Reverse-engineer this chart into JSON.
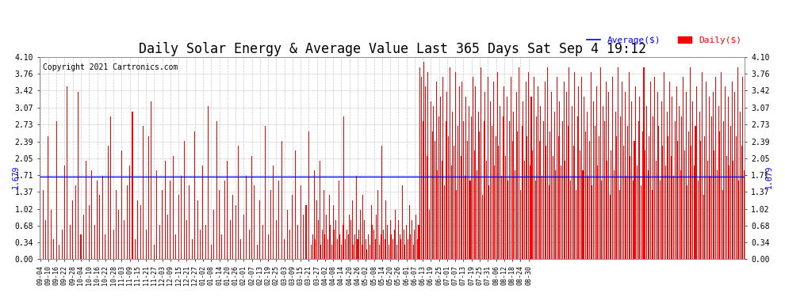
{
  "title": "Daily Solar Energy & Average Value Last 365 Days Sat Sep 4 19:12",
  "copyright": "Copyright 2021 Cartronics.com",
  "legend_average": "Average($)",
  "legend_daily": "Daily($)",
  "average_value": 1.679,
  "bar_color": "#FF0000",
  "average_line_color": "#0000FF",
  "background_color": "#FFFFFF",
  "grid_color": "#BBBBBB",
  "ylim": [
    0.0,
    4.1
  ],
  "yticks": [
    0.0,
    0.34,
    0.68,
    1.02,
    1.37,
    1.71,
    2.05,
    2.39,
    2.73,
    3.07,
    3.42,
    3.76,
    4.1
  ],
  "title_fontsize": 12,
  "copyright_fontsize": 7,
  "x_labels": [
    "09-04",
    "09-10",
    "09-16",
    "09-22",
    "09-28",
    "10-04",
    "10-10",
    "10-16",
    "10-22",
    "10-28",
    "11-03",
    "11-09",
    "11-15",
    "11-21",
    "11-27",
    "12-03",
    "12-09",
    "12-15",
    "12-21",
    "12-27",
    "01-02",
    "01-08",
    "01-14",
    "01-20",
    "01-26",
    "02-01",
    "02-07",
    "02-13",
    "02-19",
    "02-25",
    "03-03",
    "03-09",
    "03-15",
    "03-21",
    "03-27",
    "04-02",
    "04-08",
    "04-14",
    "04-20",
    "04-26",
    "05-02",
    "05-08",
    "05-14",
    "05-20",
    "05-26",
    "06-01",
    "06-07",
    "06-13",
    "06-19",
    "06-25",
    "07-01",
    "07-07",
    "07-13",
    "07-19",
    "07-25",
    "07-31",
    "08-06",
    "08-12",
    "08-18",
    "08-24",
    "08-30"
  ],
  "x_label_indices": [
    0,
    6,
    12,
    18,
    24,
    30,
    36,
    42,
    48,
    54,
    60,
    66,
    72,
    78,
    84,
    90,
    96,
    102,
    108,
    114,
    120,
    126,
    132,
    138,
    144,
    150,
    156,
    162,
    168,
    174,
    180,
    186,
    192,
    198,
    204,
    210,
    216,
    222,
    228,
    234,
    240,
    246,
    252,
    258,
    264,
    270,
    276,
    282,
    288,
    294,
    300,
    306,
    312,
    318,
    324,
    330,
    336,
    342,
    348,
    354,
    360
  ],
  "values": [
    2.1,
    0.0,
    1.4,
    0.0,
    0.8,
    0.0,
    2.5,
    0.0,
    1.0,
    0.0,
    0.4,
    0.0,
    2.8,
    0.0,
    0.3,
    0.0,
    0.6,
    0.0,
    1.9,
    0.0,
    3.5,
    0.0,
    0.7,
    0.0,
    1.2,
    0.0,
    1.5,
    0.0,
    3.4,
    0.0,
    0.5,
    0.0,
    0.9,
    0.0,
    2.0,
    0.0,
    1.1,
    0.0,
    1.8,
    0.0,
    0.7,
    0.0,
    1.6,
    0.0,
    1.3,
    0.0,
    1.7,
    0.0,
    0.5,
    0.0,
    2.3,
    0.0,
    2.9,
    0.0,
    0.6,
    0.0,
    1.4,
    0.0,
    1.0,
    0.0,
    2.2,
    0.0,
    0.8,
    0.0,
    1.5,
    0.0,
    1.9,
    0.0,
    3.0,
    0.0,
    0.4,
    0.0,
    1.2,
    0.0,
    1.1,
    0.0,
    2.7,
    0.0,
    0.6,
    0.0,
    2.5,
    0.0,
    3.2,
    0.0,
    0.3,
    0.0,
    1.8,
    0.0,
    0.7,
    0.0,
    1.4,
    0.0,
    2.0,
    0.0,
    0.9,
    0.0,
    1.6,
    0.0,
    2.1,
    0.0,
    0.5,
    0.0,
    1.3,
    0.0,
    1.7,
    0.0,
    2.4,
    0.0,
    0.8,
    0.0,
    1.5,
    0.0,
    0.4,
    0.0,
    2.6,
    0.0,
    1.2,
    0.0,
    0.6,
    0.0,
    1.9,
    0.0,
    0.7,
    0.0,
    3.1,
    0.0,
    0.3,
    0.0,
    1.0,
    0.0,
    2.8,
    0.0,
    1.4,
    0.0,
    0.5,
    0.0,
    1.6,
    0.0,
    2.0,
    0.0,
    0.8,
    0.0,
    1.3,
    0.0,
    1.1,
    0.0,
    2.3,
    0.0,
    0.4,
    0.0,
    0.9,
    0.0,
    1.7,
    0.0,
    0.6,
    0.0,
    2.1,
    0.0,
    1.5,
    0.0,
    0.3,
    0.0,
    1.2,
    0.0,
    0.7,
    0.0,
    2.7,
    0.0,
    0.5,
    0.0,
    1.4,
    0.0,
    1.9,
    0.0,
    0.8,
    0.0,
    1.6,
    0.0,
    2.4,
    0.0,
    0.4,
    0.0,
    1.0,
    0.0,
    0.6,
    0.0,
    1.3,
    0.0,
    2.2,
    0.0,
    0.7,
    0.0,
    1.5,
    0.0,
    0.9,
    0.0,
    1.1,
    0.0,
    2.6,
    0.0,
    0.3,
    0.5,
    1.8,
    0.4,
    1.2,
    0.8,
    2.0,
    0.3,
    0.6,
    1.4,
    0.5,
    0.9,
    0.4,
    1.3,
    0.7,
    0.3,
    1.1,
    0.6,
    0.8,
    0.4,
    1.6,
    0.5,
    0.3,
    0.7,
    2.9,
    0.4,
    0.6,
    0.5,
    0.9,
    0.8,
    1.2,
    0.3,
    0.5,
    1.7,
    0.4,
    0.6,
    1.0,
    0.3,
    1.3,
    0.8,
    0.4,
    0.2,
    0.5,
    0.3,
    1.1,
    0.7,
    0.6,
    0.4,
    0.9,
    1.4,
    0.3,
    0.5,
    2.3,
    0.6,
    0.4,
    1.2,
    0.7,
    0.3,
    0.8,
    0.5,
    0.4,
    0.6,
    1.0,
    0.3,
    0.8,
    0.5,
    0.4,
    1.5,
    0.6,
    0.3,
    0.7,
    0.4,
    1.1,
    0.5,
    0.8,
    0.3,
    0.6,
    0.9,
    0.4,
    0.7,
    3.9,
    3.7,
    2.8,
    4.0,
    3.5,
    2.1,
    3.8,
    1.0,
    3.2,
    2.6,
    3.1,
    2.4,
    3.6,
    1.8,
    2.9,
    3.3,
    2.0,
    3.7,
    1.5,
    2.8,
    3.4,
    2.5,
    3.9,
    1.9,
    3.0,
    2.3,
    3.8,
    1.4,
    2.7,
    3.5,
    2.1,
    3.6,
    2.8,
    1.7,
    3.3,
    2.4,
    3.1,
    1.6,
    2.9,
    3.7,
    2.2,
    3.5,
    1.8,
    3.0,
    2.6,
    3.9,
    1.3,
    2.8,
    3.4,
    2.0,
    3.7,
    1.5,
    3.2,
    2.7,
    3.6,
    1.9,
    2.5,
    3.8,
    2.3,
    3.1,
    1.7,
    2.9,
    3.5,
    2.1,
    3.3,
    1.6,
    2.8,
    3.7,
    2.4,
    3.0,
    1.8,
    3.4,
    2.6,
    3.9,
    1.4,
    2.7,
    3.2,
    2.0,
    3.6,
    2.5,
    3.8,
    1.9,
    3.3,
    2.2,
    3.7,
    1.6,
    2.9,
    3.5,
    2.4,
    3.1,
    1.7,
    2.8,
    3.6,
    2.3,
    3.9,
    1.5,
    2.6,
    3.4,
    2.1,
    3.0,
    1.8,
    3.7,
    2.5,
    3.2,
    1.9,
    2.8,
    3.6,
    2.0,
    3.4,
    2.7,
    3.9,
    1.6,
    3.1,
    2.3,
    3.8,
    1.4,
    2.9,
    3.5,
    2.2,
    3.7,
    1.8,
    3.3,
    2.6,
    3.0,
    1.7,
    2.4,
    3.8,
    1.5,
    3.2,
    2.7,
    3.5,
    1.9,
    2.5,
    3.9,
    1.6,
    3.1,
    2.8,
    3.6,
    2.0,
    3.4,
    1.3,
    2.2,
    3.7,
    1.8,
    3.0,
    2.5,
    3.9,
    1.4,
    2.9,
    3.6,
    2.3,
    3.4,
    1.7,
    2.7,
    3.8,
    2.1,
    3.2,
    1.6,
    2.4,
    3.5,
    1.9,
    2.8,
    3.3,
    1.5,
    2.6,
    3.9,
    2.2,
    3.1,
    1.8,
    2.5,
    3.6,
    1.4,
    2.9,
    3.7,
    2.0,
    3.4,
    2.7,
    1.6,
    3.2,
    2.3,
    3.8,
    1.9,
    3.0,
    2.5,
    3.6,
    2.1,
    3.3,
    1.7,
    2.8,
    3.5,
    2.4,
    3.1,
    1.8,
    2.9,
    3.7,
    2.2,
    3.4,
    1.5,
    2.6,
    3.9,
    2.3,
    3.2,
    1.9,
    2.7,
    3.5,
    1.6,
    3.0,
    2.4,
    3.8,
    1.3,
    2.5,
    3.6,
    2.0,
    3.3,
    1.7,
    2.9,
    3.4,
    2.2,
    3.7,
    1.8,
    3.1,
    2.6,
    3.8,
    1.4,
    2.8,
    3.5,
    2.1,
    3.3,
    1.9,
    2.7,
    3.6,
    2.0,
    3.4,
    2.5,
    3.9,
    1.6,
    3.0,
    2.3,
    3.7,
    1.8
  ]
}
